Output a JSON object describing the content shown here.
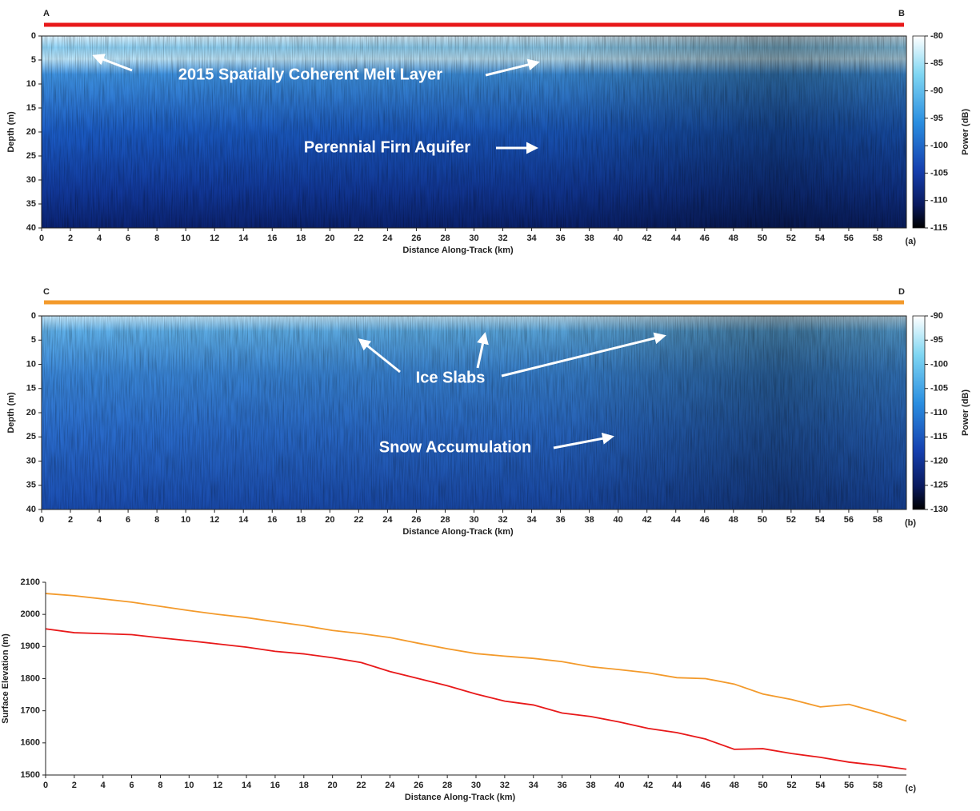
{
  "chart_data": [
    {
      "type": "radargram",
      "panel_label": "(a)",
      "start_label": "A",
      "end_label": "B",
      "profile_color": "#e8191a",
      "x_label": "Distance Along-Track (km)",
      "y_label": "Depth (m)",
      "xlim": [
        0,
        60
      ],
      "xticks": [
        0,
        2,
        4,
        6,
        8,
        10,
        12,
        14,
        16,
        18,
        20,
        22,
        24,
        26,
        28,
        30,
        32,
        34,
        36,
        38,
        40,
        42,
        44,
        46,
        48,
        50,
        52,
        54,
        56,
        58
      ],
      "ylim": [
        40,
        0
      ],
      "yticks": [
        0,
        5,
        10,
        15,
        20,
        25,
        30,
        35,
        40
      ],
      "colorbar": {
        "label": "Power (dB)",
        "lim": [
          -115,
          -80
        ],
        "ticks": [
          -80,
          -85,
          -90,
          -95,
          -100,
          -105,
          -110,
          -115
        ]
      },
      "annotations": [
        "2015 Spatially Coherent Melt Layer",
        "Perennial Firn Aquifer"
      ]
    },
    {
      "type": "radargram",
      "panel_label": "(b)",
      "start_label": "C",
      "end_label": "D",
      "profile_color": "#f39a2b",
      "x_label": "Distance Along-Track (km)",
      "y_label": "Depth (m)",
      "xlim": [
        0,
        60
      ],
      "xticks": [
        0,
        2,
        4,
        6,
        8,
        10,
        12,
        14,
        16,
        18,
        20,
        22,
        24,
        26,
        28,
        30,
        32,
        34,
        36,
        38,
        40,
        42,
        44,
        46,
        48,
        50,
        52,
        54,
        56,
        58
      ],
      "ylim": [
        40,
        0
      ],
      "yticks": [
        0,
        5,
        10,
        15,
        20,
        25,
        30,
        35,
        40
      ],
      "colorbar": {
        "label": "Power (dB)",
        "lim": [
          -130,
          -90
        ],
        "ticks": [
          -90,
          -95,
          -100,
          -105,
          -110,
          -115,
          -120,
          -125,
          -130
        ]
      },
      "annotations": [
        "Ice Slabs",
        "Snow Accumulation"
      ]
    },
    {
      "type": "line",
      "panel_label": "(c)",
      "x_label": "Distance Along-Track (km)",
      "y_label": "Surface Elevation (m)",
      "xlim": [
        0,
        60
      ],
      "xticks": [
        0,
        2,
        4,
        6,
        8,
        10,
        12,
        14,
        16,
        18,
        20,
        22,
        24,
        26,
        28,
        30,
        32,
        34,
        36,
        38,
        40,
        42,
        44,
        46,
        48,
        50,
        52,
        54,
        56,
        58
      ],
      "ylim": [
        1500,
        2100
      ],
      "yticks": [
        1500,
        1600,
        1700,
        1800,
        1900,
        2000,
        2100
      ],
      "x": [
        0,
        2,
        4,
        6,
        8,
        10,
        12,
        14,
        16,
        18,
        20,
        22,
        24,
        26,
        28,
        30,
        32,
        34,
        36,
        38,
        40,
        42,
        44,
        46,
        48,
        50,
        52,
        54,
        56,
        58,
        60
      ],
      "series": [
        {
          "color": "#f39a2b",
          "values": [
            2065,
            2058,
            2048,
            2038,
            2025,
            2012,
            2000,
            1990,
            1977,
            1965,
            1950,
            1940,
            1928,
            1910,
            1893,
            1878,
            1870,
            1863,
            1853,
            1837,
            1828,
            1818,
            1803,
            1800,
            1783,
            1752,
            1735,
            1712,
            1720,
            1695,
            1668
          ]
        },
        {
          "color": "#e8191a",
          "values": [
            1955,
            1943,
            1940,
            1937,
            1927,
            1918,
            1908,
            1898,
            1885,
            1877,
            1865,
            1850,
            1822,
            1800,
            1778,
            1752,
            1730,
            1718,
            1693,
            1682,
            1665,
            1645,
            1632,
            1612,
            1580,
            1582,
            1567,
            1555,
            1540,
            1530,
            1518
          ]
        }
      ]
    }
  ]
}
